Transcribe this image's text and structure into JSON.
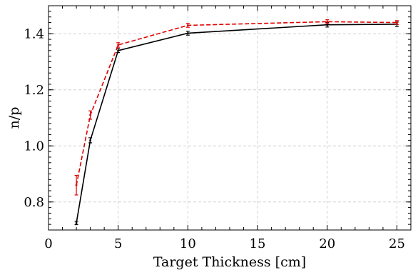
{
  "chart_data": {
    "type": "line",
    "xlabel": "Target Thickness [cm]",
    "ylabel": "n/p",
    "xlim": [
      0,
      26
    ],
    "ylim": [
      0.7,
      1.5
    ],
    "xticks": [
      0,
      5,
      10,
      15,
      20,
      25
    ],
    "yticks": [
      0.8,
      1.0,
      1.2,
      1.4
    ],
    "xtick_labels": [
      "0",
      "5",
      "10",
      "15",
      "20",
      "25"
    ],
    "ytick_labels": [
      "0.8",
      "1.0",
      "1.2",
      "1.4"
    ],
    "grid": true,
    "series": [
      {
        "color": "#000000",
        "dash": "solid",
        "x": [
          2,
          3,
          5,
          10,
          20,
          25
        ],
        "y": [
          0.725,
          1.02,
          1.34,
          1.402,
          1.432,
          1.434
        ],
        "err": [
          0.006,
          0.009,
          0.007,
          0.007,
          0.008,
          0.008
        ]
      },
      {
        "color": "#e00000",
        "dash": "dashed",
        "x": [
          2,
          3,
          5,
          10,
          20,
          25
        ],
        "y": [
          0.86,
          1.11,
          1.36,
          1.43,
          1.443,
          1.44
        ],
        "err": [
          0.035,
          0.015,
          0.008,
          0.007,
          0.007,
          0.007
        ]
      }
    ]
  }
}
